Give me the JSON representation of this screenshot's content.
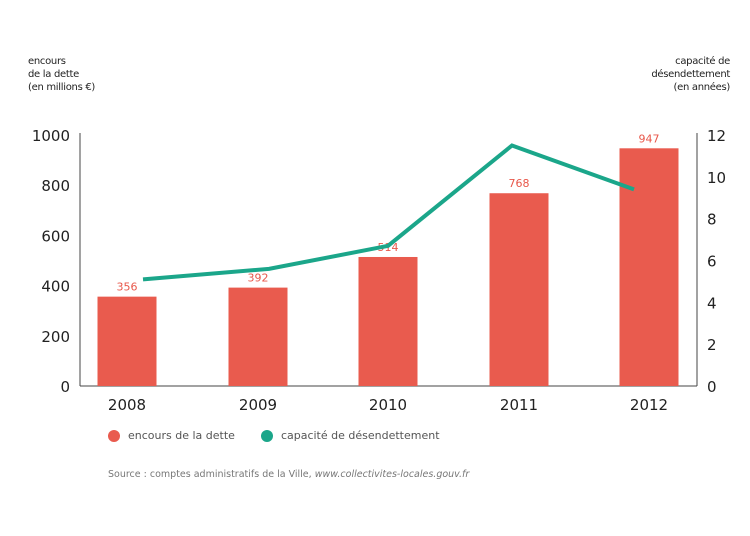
{
  "chart_data": {
    "type": "bar",
    "categories": [
      "2008",
      "2009",
      "2010",
      "2011",
      "2012"
    ],
    "series": [
      {
        "name": "encours de la dette",
        "type": "bar",
        "axis": "left",
        "values": [
          356,
          392,
          514,
          768,
          947
        ],
        "color": "#e95b4e"
      },
      {
        "name": "capacité de désendettement",
        "type": "line",
        "axis": "right",
        "values": [
          5.1,
          5.6,
          6.7,
          11.5,
          9.4
        ],
        "color": "#1ba68a"
      }
    ],
    "data_labels": [
      "356",
      "392",
      "514",
      "768",
      "947"
    ],
    "ylabel_left": "encours\nde la dette\n(en millions €)",
    "ylabel_right": "capacité de\ndésendettement\n(en années)",
    "ylim_left": [
      0,
      1000
    ],
    "yticks_left": [
      "0",
      "200",
      "400",
      "600",
      "800",
      "1000"
    ],
    "ylim_right": [
      0,
      12
    ],
    "yticks_right": [
      "0",
      "2",
      "4",
      "6",
      "8",
      "10",
      "12"
    ],
    "grid": false,
    "legend_position": "bottom"
  },
  "source": {
    "prefix": "Source : comptes administratifs de la Ville, ",
    "link": "www.collectivites-locales.gouv.fr"
  }
}
